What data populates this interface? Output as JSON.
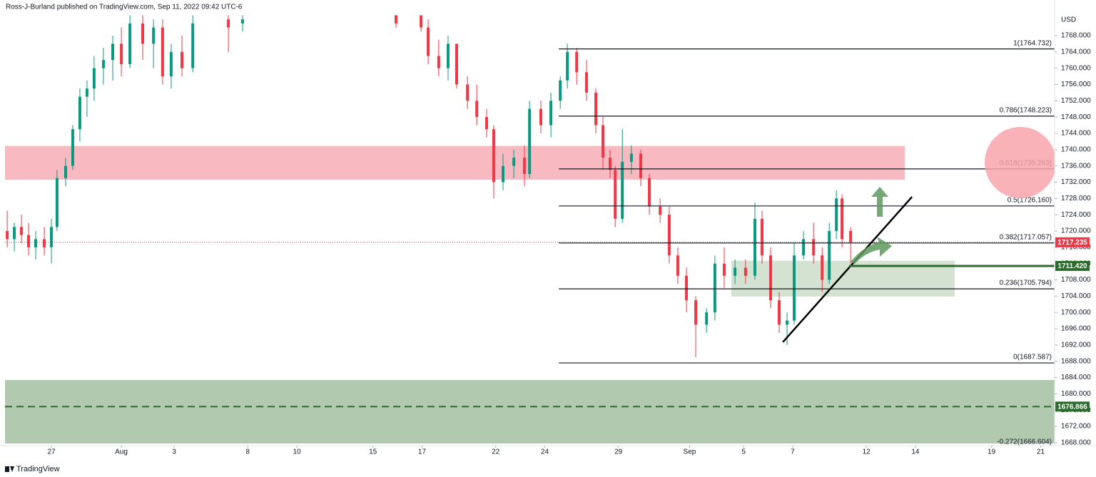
{
  "chart_data": {
    "type": "candlestick",
    "header": "Ross-J-Burland published on TradingView.com, Sep 11, 2022 09:42 UTC-6",
    "currency": "USD",
    "footer": "TradingView",
    "up_color": "#089981",
    "down_color": "#f23645",
    "xlim": [
      -1.89,
      40.87
    ],
    "ylim": [
      1667.8,
      1773.6
    ],
    "xticks": [
      {
        "value": 0,
        "label": "27"
      },
      {
        "value": 2.85,
        "label": "Aug"
      },
      {
        "value": 5,
        "label": "3"
      },
      {
        "value": 8,
        "label": "8"
      },
      {
        "value": 10,
        "label": "10"
      },
      {
        "value": 13.1,
        "label": "15"
      },
      {
        "value": 15.1,
        "label": "17"
      },
      {
        "value": 18.1,
        "label": "22"
      },
      {
        "value": 20.1,
        "label": "24"
      },
      {
        "value": 23.1,
        "label": "29"
      },
      {
        "value": 26,
        "label": "Sep"
      },
      {
        "value": 28.2,
        "label": "5"
      },
      {
        "value": 30.2,
        "label": "7"
      },
      {
        "value": 33.2,
        "label": "12"
      },
      {
        "value": 35.2,
        "label": "14"
      },
      {
        "value": 38.3,
        "label": "19"
      },
      {
        "value": 40.3,
        "label": "21"
      }
    ],
    "yticks": [
      {
        "value": 1668,
        "label": "1668.000"
      },
      {
        "value": 1672,
        "label": "1672.000"
      },
      {
        "value": 1676,
        "label": "1676.000"
      },
      {
        "value": 1680,
        "label": "1680.000"
      },
      {
        "value": 1684,
        "label": "1684.000"
      },
      {
        "value": 1688,
        "label": "1688.000"
      },
      {
        "value": 1692,
        "label": "1692.000"
      },
      {
        "value": 1696,
        "label": "1696.000"
      },
      {
        "value": 1700,
        "label": "1700.000"
      },
      {
        "value": 1704,
        "label": "1704.000"
      },
      {
        "value": 1708,
        "label": "1708.000"
      },
      {
        "value": 1712,
        "label": "1712.000"
      },
      {
        "value": 1716,
        "label": "1716.000"
      },
      {
        "value": 1720,
        "label": "1720.000"
      },
      {
        "value": 1724,
        "label": "1724.000"
      },
      {
        "value": 1728,
        "label": "1728.000"
      },
      {
        "value": 1732,
        "label": "1732.000"
      },
      {
        "value": 1736,
        "label": "1736.000"
      },
      {
        "value": 1740,
        "label": "1740.000"
      },
      {
        "value": 1744,
        "label": "1744.000"
      },
      {
        "value": 1748,
        "label": "1748.000"
      },
      {
        "value": 1752,
        "label": "1752.000"
      },
      {
        "value": 1756,
        "label": "1756.000"
      },
      {
        "value": 1760,
        "label": "1760.000"
      },
      {
        "value": 1764,
        "label": "1764.000"
      },
      {
        "value": 1768,
        "label": "1768.000"
      }
    ],
    "candles": [
      [
        -1.8,
        1720,
        1725,
        1716,
        1718
      ],
      [
        -1.51,
        1718,
        1722,
        1715,
        1721
      ],
      [
        -1.22,
        1721,
        1724,
        1717,
        1719
      ],
      [
        -0.93,
        1719,
        1722,
        1714,
        1716
      ],
      [
        -0.64,
        1716,
        1720,
        1713,
        1718
      ],
      [
        -0.29,
        1718,
        1721,
        1714,
        1716
      ],
      [
        0,
        1716,
        1723,
        1712,
        1721
      ],
      [
        0.23,
        1721,
        1735,
        1720,
        1733
      ],
      [
        0.58,
        1733,
        1738,
        1731,
        1736
      ],
      [
        0.87,
        1736,
        1746,
        1735,
        1745
      ],
      [
        1.16,
        1745,
        1755,
        1742,
        1753
      ],
      [
        1.45,
        1753,
        1757,
        1748,
        1755
      ],
      [
        1.74,
        1755,
        1763,
        1752,
        1760
      ],
      [
        2.12,
        1760,
        1765,
        1756,
        1762
      ],
      [
        2.5,
        1762,
        1768,
        1757,
        1766
      ],
      [
        2.85,
        1766,
        1770,
        1758,
        1761
      ],
      [
        3.2,
        1761,
        1773,
        1760,
        1771
      ],
      [
        3.72,
        1771,
        1773,
        1762,
        1766
      ],
      [
        4.16,
        1766,
        1772,
        1760,
        1770
      ],
      [
        4.53,
        1770,
        1772,
        1756,
        1758
      ],
      [
        4.88,
        1758,
        1766,
        1755,
        1764
      ],
      [
        5.32,
        1764,
        1768,
        1758,
        1760
      ],
      [
        5.76,
        1760,
        1773,
        1759,
        1771
      ],
      [
        7.21,
        1772,
        1773,
        1764,
        1770
      ],
      [
        7.79,
        1771,
        1773,
        1769,
        1772
      ],
      [
        14.04,
        1773,
        1773,
        1770,
        1771
      ],
      [
        15.06,
        1773,
        1773,
        1769,
        1770
      ],
      [
        15.35,
        1770,
        1772,
        1761,
        1763
      ],
      [
        15.78,
        1763,
        1767,
        1758,
        1760
      ],
      [
        16.16,
        1760,
        1768,
        1757,
        1766
      ],
      [
        16.51,
        1766,
        1766,
        1755,
        1756
      ],
      [
        16.95,
        1756,
        1758,
        1750,
        1752
      ],
      [
        17.33,
        1752,
        1756,
        1746,
        1748
      ],
      [
        17.73,
        1748,
        1750,
        1743,
        1745
      ],
      [
        18.02,
        1745,
        1746,
        1728,
        1732
      ],
      [
        18.4,
        1732,
        1739,
        1730,
        1736
      ],
      [
        18.84,
        1736,
        1740,
        1733,
        1738
      ],
      [
        19.27,
        1738,
        1741,
        1731,
        1734
      ],
      [
        19.48,
        1734,
        1752,
        1733,
        1750
      ],
      [
        19.94,
        1750,
        1752,
        1744,
        1746
      ],
      [
        20.35,
        1746,
        1754,
        1743,
        1752
      ],
      [
        20.73,
        1752,
        1758,
        1750,
        1757
      ],
      [
        21.02,
        1757,
        1766,
        1755,
        1764
      ],
      [
        21.4,
        1764,
        1765,
        1756,
        1759
      ],
      [
        21.8,
        1759,
        1762,
        1752,
        1754
      ],
      [
        22.18,
        1754,
        1755,
        1744,
        1746
      ],
      [
        22.47,
        1746,
        1748,
        1735,
        1738
      ],
      [
        22.76,
        1738,
        1740,
        1733,
        1735
      ],
      [
        22.97,
        1735,
        1736,
        1721,
        1723
      ],
      [
        23.26,
        1723,
        1745,
        1722,
        1737
      ],
      [
        23.63,
        1737,
        1741,
        1734,
        1739
      ],
      [
        24.01,
        1739,
        1740,
        1731,
        1733
      ],
      [
        24.36,
        1733,
        1734,
        1724,
        1726
      ],
      [
        24.8,
        1726,
        1728,
        1722,
        1724
      ],
      [
        25.17,
        1724,
        1726,
        1712,
        1714
      ],
      [
        25.52,
        1714,
        1716,
        1707,
        1709
      ],
      [
        25.87,
        1709,
        1711,
        1700,
        1703
      ],
      [
        26.25,
        1703,
        1704,
        1689,
        1697
      ],
      [
        26.69,
        1697,
        1701,
        1695,
        1700
      ],
      [
        27.03,
        1700,
        1714,
        1698,
        1712
      ],
      [
        27.41,
        1712,
        1716,
        1706,
        1709
      ],
      [
        27.85,
        1709,
        1713,
        1707,
        1711
      ],
      [
        28.28,
        1711,
        1713,
        1707,
        1709
      ],
      [
        28.66,
        1709,
        1727,
        1708,
        1723
      ],
      [
        28.95,
        1723,
        1725,
        1712,
        1714
      ],
      [
        29.3,
        1714,
        1716,
        1701,
        1703
      ],
      [
        29.65,
        1703,
        1705,
        1695,
        1697
      ],
      [
        29.97,
        1697,
        1700,
        1692,
        1698
      ],
      [
        30.26,
        1698,
        1717,
        1697,
        1714
      ],
      [
        30.64,
        1714,
        1720,
        1713,
        1718
      ],
      [
        31.05,
        1718,
        1722,
        1712,
        1714
      ],
      [
        31.4,
        1714,
        1716,
        1705,
        1708
      ],
      [
        31.69,
        1708,
        1722,
        1707,
        1720
      ],
      [
        31.98,
        1720,
        1730,
        1718,
        1728
      ],
      [
        32.21,
        1728,
        1729,
        1716,
        1718
      ],
      [
        32.56,
        1720,
        1721,
        1712,
        1717.235
      ]
    ],
    "zones": [
      {
        "x": [
          -1.89,
          34.77
        ],
        "y": [
          1740.9,
          1732.6
        ],
        "color": "#f7b3b9"
      },
      {
        "x": [
          27.7,
          36.8
        ],
        "y": [
          1712.7,
          1703.9
        ],
        "color": "#cfe0cc"
      },
      {
        "x": [
          -1.89,
          40.87
        ],
        "y": [
          1683.4,
          1667.8
        ],
        "color": "#a9c4a6"
      }
    ],
    "fib_start": 20.67,
    "fib_levels": [
      {
        "value": 1764.732,
        "label": "1(1764.732)"
      },
      {
        "value": 1748.223,
        "label": "0.786(1748.223)"
      },
      {
        "value": 1735.263,
        "label": "0.618(1735.263)"
      },
      {
        "value": 1726.16,
        "label": "0.5(1726.160)"
      },
      {
        "value": 1717.057,
        "label": "0.382(1717.057)"
      },
      {
        "value": 1705.794,
        "label": "0.236(1705.794)"
      },
      {
        "value": 1687.587,
        "label": "0(1687.587)"
      },
      {
        "value": 1666.604,
        "label": "-0.272(1666.604)"
      }
    ],
    "current_price": 1717.235,
    "support_line": {
      "x": 32.5,
      "value": 1711.42,
      "label": "1711.420",
      "color": "#2e6b2e"
    },
    "dashed_line": {
      "value": 1676.866,
      "label": "1676.866",
      "color": "#2e6b2e"
    },
    "trendline": {
      "x": [
        29.8,
        35.06
      ],
      "y": [
        1692.7,
        1728.4
      ]
    }
  }
}
